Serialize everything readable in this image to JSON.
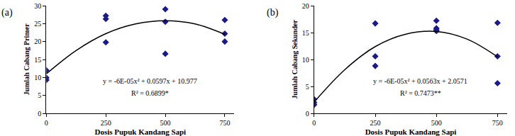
{
  "chart_data": [
    {
      "type": "scatter",
      "title": "(a)",
      "x_label": "Dosis Pupuk Kandang Sapi",
      "y_label": "Jumlah Cabang Primer",
      "xlim": [
        0,
        790
      ],
      "xticks": [
        0,
        250,
        500,
        750
      ],
      "ylim": [
        0,
        30
      ],
      "yticks": [
        0,
        5,
        10,
        15,
        20,
        25,
        30
      ],
      "grid": false,
      "series": [
        {
          "type": "scatter",
          "marker": "diamond",
          "color": "#1a1a8c",
          "x": [
            0,
            0,
            0,
            250,
            250,
            250,
            500,
            500,
            500,
            750,
            750,
            750
          ],
          "values": [
            12,
            9.9,
            9.3,
            27.2,
            26.3,
            19.8,
            29,
            25.5,
            16.6,
            26,
            22.2,
            20
          ]
        },
        {
          "type": "line",
          "line_style": "solid",
          "color": "#000000",
          "x": [
            0,
            125,
            250,
            375,
            500,
            625,
            750
          ],
          "values": [
            11,
            17.5,
            22.2,
            24.9,
            25.8,
            24.9,
            22
          ]
        }
      ],
      "annotations": [
        "y = -6E-05x² + 0.0597x + 10.977",
        "R² = 0.6899*"
      ]
    },
    {
      "type": "scatter",
      "title": "(b)",
      "x_label": "Dosis Pupuk Kandang Sapi",
      "y_label": "Jumlah Cabang Sekunder",
      "xlim": [
        0,
        790
      ],
      "xticks": [
        0,
        250,
        500,
        750
      ],
      "ylim": [
        0,
        20
      ],
      "yticks": [
        0,
        5,
        10,
        15,
        20
      ],
      "grid": false,
      "series": [
        {
          "type": "scatter",
          "marker": "diamond",
          "color": "#1a1a8c",
          "x": [
            0,
            0,
            0,
            250,
            250,
            250,
            500,
            500,
            500,
            500,
            750,
            750,
            750
          ],
          "values": [
            2.6,
            2,
            1.6,
            16.7,
            10.6,
            8.8,
            17.2,
            15.8,
            15.3,
            15.5,
            16.8,
            10.6,
            5.6
          ]
        },
        {
          "type": "line",
          "line_style": "solid",
          "color": "#000000",
          "x": [
            0,
            125,
            250,
            375,
            500,
            625,
            750
          ],
          "values": [
            2.1,
            8.1,
            12.4,
            14.7,
            15.2,
            13.8,
            10.5
          ]
        }
      ],
      "annotations": [
        "y = -6E-05x² + 0.0563x + 2.0571",
        "R² = 0.7473**"
      ]
    }
  ]
}
